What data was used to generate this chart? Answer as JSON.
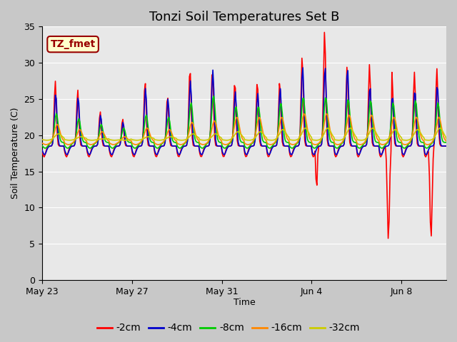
{
  "title": "Tonzi Soil Temperatures Set B",
  "xlabel": "Time",
  "ylabel": "Soil Temperature (C)",
  "ylim": [
    0,
    35
  ],
  "annotation_label": "TZ_fmet",
  "annotation_bg": "#ffffcc",
  "annotation_border": "#990000",
  "annotation_text_color": "#990000",
  "fig_bg": "#c8c8c8",
  "plot_bg": "#e8e8e8",
  "series": [
    {
      "label": "-2cm",
      "color": "#ff0000"
    },
    {
      "label": "-4cm",
      "color": "#0000cc"
    },
    {
      "label": "-8cm",
      "color": "#00cc00"
    },
    {
      "label": "-16cm",
      "color": "#ff8800"
    },
    {
      "label": "-32cm",
      "color": "#cccc00"
    }
  ],
  "xtick_positions": [
    0,
    4,
    8,
    12,
    16
  ],
  "xtick_labels": [
    "May 23",
    "May 27",
    "May 31",
    "Jun 4",
    "Jun 8"
  ],
  "ytick_positions": [
    0,
    5,
    10,
    15,
    20,
    25,
    30,
    35
  ],
  "grid_color": "#ffffff",
  "legend_fontsize": 10,
  "title_fontsize": 13,
  "figsize": [
    6.4,
    4.8
  ],
  "dpi": 100
}
